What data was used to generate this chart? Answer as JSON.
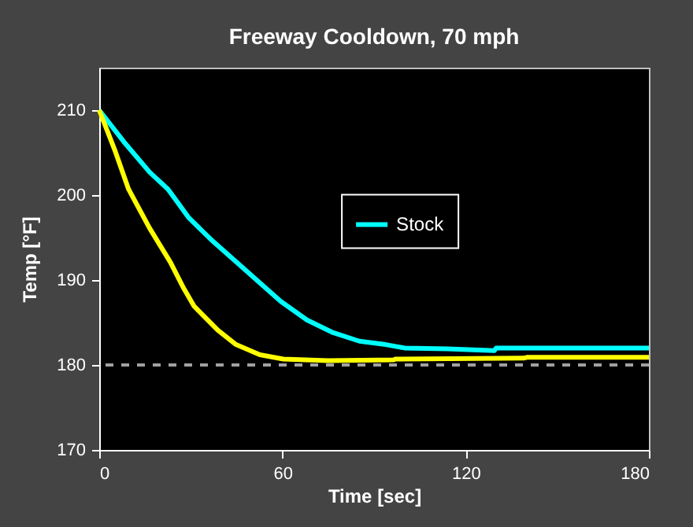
{
  "chart_data": {
    "type": "line",
    "title": "Freeway Cooldown, 70 mph",
    "xlabel": "Time [sec]",
    "ylabel": "Temp [°F]",
    "xlim": [
      0,
      180
    ],
    "xticks": [
      0,
      60,
      120,
      180
    ],
    "ylim": [
      170,
      215
    ],
    "yticks": [
      170,
      180,
      190,
      200,
      210
    ],
    "grid": false,
    "legend": "right",
    "line_style": "solid",
    "marker": "none",
    "series": [
      {
        "name": "Stock",
        "color": "#00ffff",
        "x": [
          0,
          8,
          16.5,
          22.5,
          29.4,
          37.1,
          44,
          50.9,
          59.4,
          68,
          76.6,
          85.2,
          93.8,
          100,
          114,
          129.4,
          130,
          180
        ],
        "values": [
          210,
          206.3,
          202.7,
          200.7,
          197.3,
          194.6,
          192.4,
          190.2,
          187.5,
          185.3,
          183.8,
          182.8,
          182.4,
          182,
          181.9,
          181.7,
          182,
          182
        ]
      },
      {
        "color": "#ffff00",
        "x": [
          0,
          5.3,
          9.6,
          16.5,
          23.3,
          27.7,
          31.1,
          38.8,
          44.8,
          52.6,
          60.3,
          74.9,
          96.4,
          97,
          139,
          140,
          180
        ],
        "values": [
          210,
          205.1,
          200.7,
          196.1,
          192.1,
          189,
          186.9,
          184.1,
          182.4,
          181.2,
          180.7,
          180.5,
          180.6,
          180.7,
          180.8,
          180.9,
          180.9
        ]
      }
    ],
    "ref_lines": [
      {
        "axis": "y",
        "value": 180,
        "color": "#a0a0a0",
        "line_style": "dashed"
      }
    ]
  }
}
